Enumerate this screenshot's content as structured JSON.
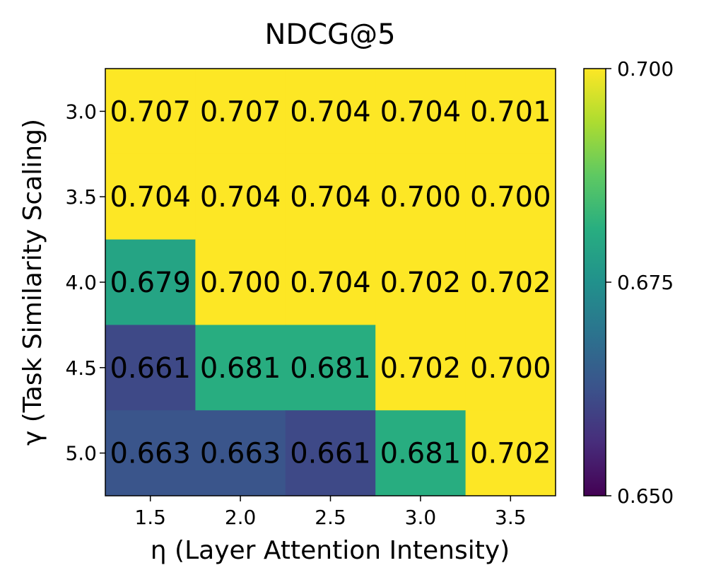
{
  "chart_data": {
    "type": "heatmap",
    "title": "NDCG@5",
    "xlabel": "η (Layer Attention Intensity)",
    "ylabel": "γ (Task Similarity Scaling)",
    "x_ticks": [
      "1.5",
      "2.0",
      "2.5",
      "3.0",
      "3.5"
    ],
    "y_ticks": [
      "3.0",
      "3.5",
      "4.0",
      "4.5",
      "5.0"
    ],
    "values": [
      [
        0.707,
        0.707,
        0.704,
        0.704,
        0.701
      ],
      [
        0.704,
        0.704,
        0.704,
        0.7,
        0.7
      ],
      [
        0.679,
        0.7,
        0.704,
        0.702,
        0.702
      ],
      [
        0.661,
        0.681,
        0.681,
        0.702,
        0.7
      ],
      [
        0.663,
        0.663,
        0.661,
        0.681,
        0.702
      ]
    ],
    "labels": [
      [
        "0.707",
        "0.707",
        "0.704",
        "0.704",
        "0.701"
      ],
      [
        "0.704",
        "0.704",
        "0.704",
        "0.700",
        "0.700"
      ],
      [
        "0.679",
        "0.700",
        "0.704",
        "0.702",
        "0.702"
      ],
      [
        "0.661",
        "0.681",
        "0.681",
        "0.702",
        "0.700"
      ],
      [
        "0.663",
        "0.663",
        "0.661",
        "0.681",
        "0.702"
      ]
    ],
    "colormap": "viridis",
    "vmin": 0.65,
    "vmax": 0.7,
    "colorbar_ticks": [
      "0.700",
      "0.675",
      "0.650"
    ],
    "colorbar_tick_values": [
      0.7,
      0.675,
      0.65
    ]
  }
}
